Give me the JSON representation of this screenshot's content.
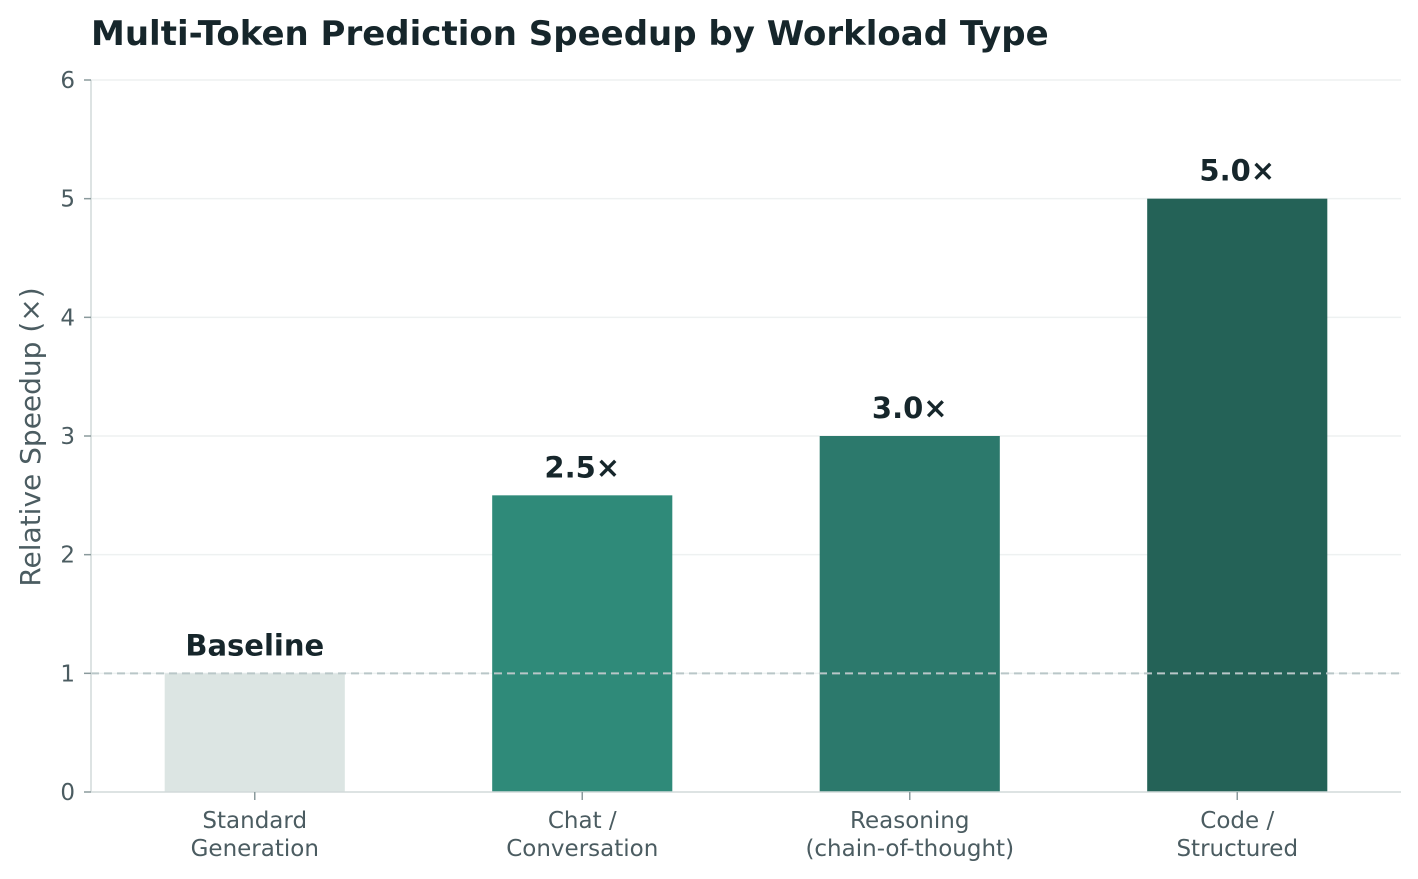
{
  "chart_data": {
    "type": "bar",
    "title": "Multi-Token Prediction Speedup by Workload Type",
    "xlabel": "",
    "ylabel": "Relative Speedup (×)",
    "ylim": [
      0,
      6
    ],
    "yticks": [
      0,
      1,
      2,
      3,
      4,
      5,
      6
    ],
    "grid": "horizontal",
    "reference_line": {
      "y": 1,
      "style": "dashed"
    },
    "categories": [
      [
        "Standard",
        "Generation"
      ],
      [
        "Chat /",
        "Conversation"
      ],
      [
        "Reasoning",
        "(chain-of-thought)"
      ],
      [
        "Code /",
        "Structured"
      ]
    ],
    "values": [
      1.0,
      2.5,
      3.0,
      5.0
    ],
    "data_labels": [
      "Baseline",
      "2.5×",
      "3.0×",
      "5.0×"
    ],
    "colors": [
      "#dce5e3",
      "#2f8a79",
      "#2c796c",
      "#246257"
    ]
  }
}
